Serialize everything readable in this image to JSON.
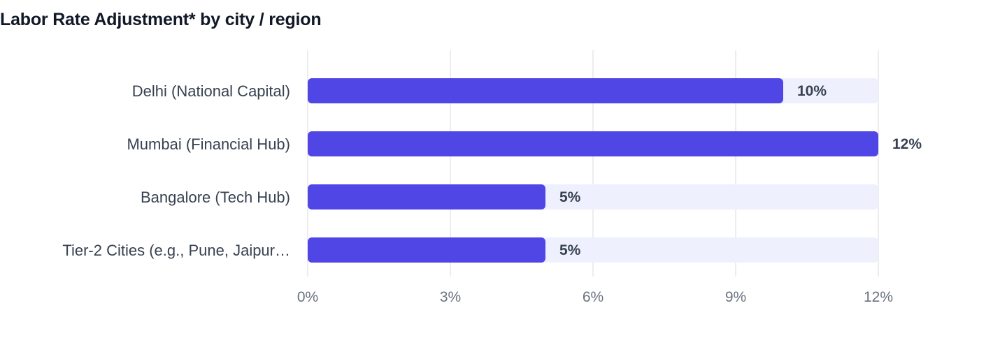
{
  "title": "Labor Rate Adjustment* by city / region",
  "colors": {
    "bar": "#4f46e5",
    "track": "#eef1fd",
    "grid": "#e5e7eb",
    "axis_text": "#6b7280",
    "label_text": "#374151",
    "title_text": "#111827"
  },
  "chart_data": {
    "type": "bar",
    "orientation": "horizontal",
    "title": "Labor Rate Adjustment* by city / region",
    "xlabel": "",
    "ylabel": "",
    "categories": [
      "Delhi (National Capital)",
      "Mumbai (Financial Hub)",
      "Bangalore (Tech Hub)",
      "Tier-2 Cities (e.g., Pune, Jaipur…"
    ],
    "values": [
      10,
      12,
      5,
      5
    ],
    "value_labels": [
      "10%",
      "12%",
      "5%",
      "5%"
    ],
    "xlim": [
      0,
      12
    ],
    "ticks": [
      0,
      3,
      6,
      9,
      12
    ],
    "tick_labels": [
      "0%",
      "3%",
      "6%",
      "9%",
      "12%"
    ],
    "grid": true,
    "legend": "none"
  }
}
